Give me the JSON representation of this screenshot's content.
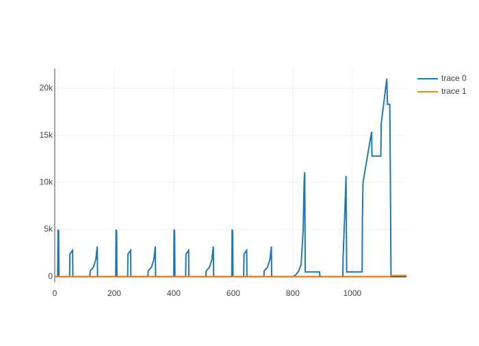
{
  "chart_data": {
    "type": "line",
    "xlim": [
      0,
      1182
    ],
    "ylim": [
      -600,
      22100
    ],
    "xticks": [
      0,
      200,
      400,
      600,
      800,
      1000
    ],
    "yticks": [
      0,
      {
        "value": 5000,
        "label": "5k"
      },
      {
        "value": 10000,
        "label": "10k"
      },
      {
        "value": 15000,
        "label": "15k"
      },
      {
        "value": 20000,
        "label": "20k"
      }
    ],
    "grid": true,
    "legend": "right",
    "series": [
      {
        "name": "trace 0",
        "color": "#1f77b4",
        "x": [
          0,
          10,
          11,
          13,
          14,
          50,
          51,
          60,
          61,
          118,
          119,
          130,
          138,
          143,
          144,
          205,
          206,
          208,
          209,
          245,
          246,
          255,
          256,
          313,
          314,
          325,
          333,
          338,
          339,
          400,
          401,
          403,
          404,
          440,
          441,
          450,
          451,
          508,
          509,
          520,
          528,
          533,
          534,
          595,
          596,
          598,
          599,
          635,
          636,
          645,
          646,
          703,
          704,
          715,
          723,
          728,
          729,
          800,
          810,
          820,
          828,
          835,
          838,
          840,
          842,
          890,
          891,
          968,
          969,
          975,
          979,
          981,
          1033,
          1034,
          1036,
          1065,
          1066,
          1096,
          1097,
          1116,
          1118,
          1126,
          1128,
          1130,
          1182
        ],
        "values": [
          0,
          0,
          5000,
          4800,
          0,
          0,
          2400,
          2800,
          0,
          0,
          600,
          1000,
          1800,
          3200,
          0,
          0,
          5000,
          4800,
          0,
          0,
          2400,
          2800,
          0,
          0,
          600,
          1000,
          1800,
          3200,
          0,
          0,
          5000,
          4800,
          0,
          0,
          2400,
          2800,
          0,
          0,
          600,
          1000,
          1800,
          3200,
          0,
          0,
          5000,
          4800,
          0,
          0,
          2400,
          2800,
          0,
          0,
          600,
          1000,
          1800,
          3200,
          0,
          0,
          200,
          600,
          1300,
          5000,
          10000,
          11100,
          500,
          500,
          0,
          0,
          2000,
          7000,
          10700,
          500,
          500,
          6000,
          10000,
          15400,
          12800,
          12800,
          16200,
          21000,
          18300,
          18300,
          10500,
          100,
          100
        ]
      },
      {
        "name": "trace 1",
        "color": "#ff7f0e",
        "x": [
          0,
          1125,
          1130,
          1182
        ],
        "values": [
          0,
          0,
          100,
          120
        ]
      }
    ]
  }
}
